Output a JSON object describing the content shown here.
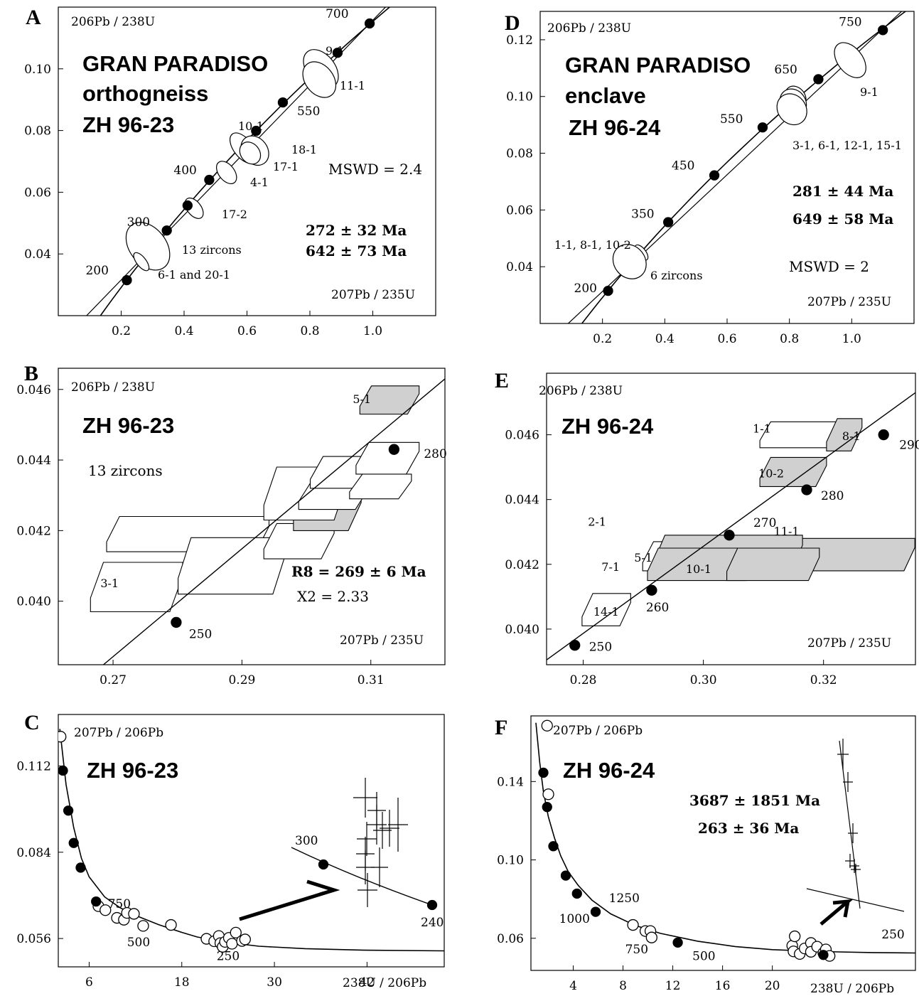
{
  "chart_data": [
    {
      "id": "A",
      "type": "concordia",
      "title": [
        "GRAN PARADISO",
        "orthogneiss",
        "ZH 96-23"
      ],
      "xlabel": "207Pb / 235U",
      "ylabel": "206Pb / 238U",
      "xlim": [
        0.0,
        1.2
      ],
      "ylim": [
        0.02,
        0.12
      ],
      "xticks": [
        0.2,
        0.4,
        0.6,
        0.8,
        1.0
      ],
      "xtick_labels": [
        "0.2",
        "0.4",
        "0.6",
        "0.8",
        "1.0"
      ],
      "yticks": [
        0.04,
        0.06,
        0.08,
        0.1
      ],
      "ytick_labels": [
        "0.04",
        "0.06",
        "0.08",
        "0.10"
      ],
      "concordia_points": [
        {
          "age": "200",
          "x": 0.218,
          "y": 0.0315
        },
        {
          "age": "300",
          "x": 0.345,
          "y": 0.0476
        },
        {
          "age": "400",
          "x": 0.48,
          "y": 0.064
        },
        {
          "age": "550",
          "x": 0.714,
          "y": 0.0891
        },
        {
          "age": "700",
          "x": 0.99,
          "y": 0.1147
        }
      ],
      "unlabeled_points": [
        {
          "x": 0.411,
          "y": 0.0557
        },
        {
          "x": 0.629,
          "y": 0.0799
        },
        {
          "x": 0.888,
          "y": 0.1052
        }
      ],
      "ellipses": [
        {
          "label": "9-1",
          "x": 0.835,
          "y": 0.1,
          "rx": 0.045,
          "ry": 0.0022
        },
        {
          "label": "11-1",
          "x": 0.83,
          "y": 0.0965,
          "rx": 0.045,
          "ry": 0.002
        },
        {
          "label": "10-1",
          "x": 0.588,
          "y": 0.0743,
          "rx": 0.03,
          "ry": 0.0018
        },
        {
          "label": "18-1",
          "x": 0.625,
          "y": 0.0735,
          "rx": 0.04,
          "ry": 0.0016
        },
        {
          "label": "17-1",
          "x": 0.61,
          "y": 0.0727,
          "rx": 0.03,
          "ry": 0.0012
        },
        {
          "label": "4-1",
          "x": 0.535,
          "y": 0.0664,
          "rx": 0.025,
          "ry": 0.0013
        },
        {
          "label": "17-2",
          "x": 0.432,
          "y": 0.0548,
          "rx": 0.022,
          "ry": 0.0012
        },
        {
          "label": "13 zircons",
          "x": 0.285,
          "y": 0.0425,
          "rx": 0.058,
          "ry": 0.0027
        },
        {
          "label": "6-1 and 20-1",
          "x": 0.264,
          "y": 0.0375,
          "rx": 0.015,
          "ry": 0.0011
        }
      ],
      "discordia": [
        [
          0.09,
          0.02
        ],
        [
          1.05,
          0.121
        ]
      ],
      "ellipse_labels": [
        "9-1",
        "11-1",
        "10-1",
        "18-1",
        "17-1",
        "4-1",
        "17-2",
        "13 zircons",
        "6-1 and 20-1"
      ],
      "results": [
        "272 ± 32 Ma",
        "642 ± 73 Ma"
      ],
      "mswd": "MSWD = 2.4"
    },
    {
      "id": "B",
      "type": "concordia",
      "title": "ZH 96-23",
      "subtitle": "13 zircons",
      "xlabel": "207Pb / 235U",
      "ylabel": "206Pb / 238U",
      "xlim": [
        0.2615,
        0.3215
      ],
      "ylim": [
        0.0382,
        0.0466
      ],
      "xticks": [
        0.27,
        0.29,
        0.31
      ],
      "xtick_labels": [
        "0.27",
        "0.29",
        "0.31"
      ],
      "yticks": [
        0.04,
        0.042,
        0.044,
        0.046
      ],
      "ytick_labels": [
        "0.040",
        "0.042",
        "0.044",
        "0.046"
      ],
      "concordia_points": [
        {
          "age": "250",
          "x": 0.2798,
          "y": 0.0394
        },
        {
          "age": "280",
          "x": 0.3136,
          "y": 0.0443
        }
      ],
      "boxes": [
        {
          "label": "5-1",
          "fill": "#d0d0d0",
          "x": [
            0.3083,
            0.3175
          ],
          "y": [
            0.0453,
            0.0461
          ],
          "dx": 0.0018
        },
        {
          "label": "3-1",
          "fill": "#ffffff",
          "x": [
            0.2665,
            0.2808
          ],
          "y": [
            0.0397,
            0.0411
          ],
          "dx": 0.002
        },
        {
          "label": "",
          "fill": "#ffffff",
          "x": [
            0.269,
            0.2942
          ],
          "y": [
            0.0414,
            0.0424
          ],
          "dx": 0.002
        },
        {
          "label": "",
          "fill": "#ffffff",
          "x": [
            0.2801,
            0.2968
          ],
          "y": [
            0.0402,
            0.0418
          ],
          "dx": 0.002
        },
        {
          "label": "",
          "fill": "#ffffff",
          "x": [
            0.2934,
            0.3043
          ],
          "y": [
            0.0412,
            0.0422
          ],
          "dx": 0.002
        },
        {
          "label": "",
          "fill": "#d0d0d0",
          "x": [
            0.298,
            0.3085
          ],
          "y": [
            0.042,
            0.0431
          ],
          "dx": 0.002
        },
        {
          "label": "",
          "fill": "#ffffff",
          "x": [
            0.2934,
            0.3063
          ],
          "y": [
            0.0423,
            0.0438
          ],
          "dx": 0.002
        },
        {
          "label": "",
          "fill": "#ffffff",
          "x": [
            0.2988,
            0.3096
          ],
          "y": [
            0.0426,
            0.0434
          ],
          "dx": 0.002
        },
        {
          "label": "",
          "fill": "#ffffff",
          "x": [
            0.3006,
            0.3122
          ],
          "y": [
            0.0432,
            0.0441
          ],
          "dx": 0.002
        },
        {
          "label": "",
          "fill": "#ffffff",
          "x": [
            0.3067,
            0.3163
          ],
          "y": [
            0.0429,
            0.0436
          ],
          "dx": 0.002
        },
        {
          "label": "",
          "fill": "#ffffff",
          "x": [
            0.3077,
            0.3175
          ],
          "y": [
            0.0436,
            0.0445
          ],
          "dx": 0.002
        }
      ],
      "line": [
        [
          0.2685,
          0.0382
        ],
        [
          0.3215,
          0.0463
        ]
      ],
      "results": "R8 = 269 ± 6 Ma",
      "chi2": "X2 = 2.33"
    },
    {
      "id": "C",
      "type": "tera-wasserburg",
      "title": "ZH 96-23",
      "xlabel": "238U / 206Pb",
      "ylabel": "207Pb / 206Pb",
      "xlim": [
        2.0,
        52.0
      ],
      "ylim": [
        0.0468,
        0.1287
      ],
      "xticks": [
        6,
        18,
        30,
        42
      ],
      "xtick_labels": [
        "6",
        "18",
        "30",
        "42"
      ],
      "yticks": [
        0.056,
        0.084,
        0.112
      ],
      "ytick_labels": [
        "0.056",
        "0.084",
        "0.112"
      ],
      "concordia_curve": [
        [
          2.2,
          0.124
        ],
        [
          3.0,
          0.106
        ],
        [
          4.0,
          0.092
        ],
        [
          5.0,
          0.082
        ],
        [
          6.0,
          0.076
        ],
        [
          8.0,
          0.0695
        ],
        [
          10.0,
          0.066
        ],
        [
          12.0,
          0.0635
        ],
        [
          15.0,
          0.0605
        ],
        [
          18.0,
          0.058
        ],
        [
          20.0,
          0.0565
        ],
        [
          24.0,
          0.0547
        ],
        [
          28.0,
          0.0535
        ],
        [
          34.0,
          0.0527
        ],
        [
          42.0,
          0.0522
        ],
        [
          52.0,
          0.052
        ]
      ],
      "concordia_points_filled": [
        [
          2.6,
          0.1105
        ],
        [
          3.3,
          0.0975
        ],
        [
          4.0,
          0.087
        ],
        [
          4.9,
          0.079
        ],
        [
          6.9,
          0.068
        ]
      ],
      "open_circles": [
        [
          2.3,
          0.1215
        ],
        [
          7.2,
          0.0665
        ],
        [
          8.1,
          0.0652
        ],
        [
          9.6,
          0.0627
        ],
        [
          10.5,
          0.0621
        ],
        [
          10.9,
          0.0643
        ],
        [
          11.8,
          0.064
        ],
        [
          13.0,
          0.0601
        ],
        [
          16.6,
          0.0604
        ],
        [
          21.2,
          0.0559
        ],
        [
          22.2,
          0.0551
        ],
        [
          22.8,
          0.0568
        ],
        [
          23.0,
          0.0545
        ],
        [
          23.3,
          0.0533
        ],
        [
          23.6,
          0.0549
        ],
        [
          24.1,
          0.0562
        ],
        [
          24.5,
          0.0543
        ],
        [
          25.0,
          0.0579
        ],
        [
          25.8,
          0.0552
        ],
        [
          26.2,
          0.0557
        ]
      ],
      "axis_labels": [
        "750",
        "500",
        "250"
      ],
      "inset": {
        "curve_points": [
          {
            "age": "300",
            "label_dx": -60,
            "label_dy": -22
          },
          {
            "age": "240",
            "label_dx": -6,
            "label_dy": 30
          }
        ],
        "crosses_count": 11
      },
      "curve_labels": {
        "750": [
          9.9,
          0.066
        ],
        "500": [
          12.4,
          0.0535
        ],
        "250": [
          24.0,
          0.049
        ]
      }
    },
    {
      "id": "D",
      "type": "concordia",
      "title": [
        "GRAN PARADISO",
        "enclave",
        "ZH 96-24"
      ],
      "xlabel": "207Pb / 235U",
      "ylabel": "206Pb / 238U",
      "xlim": [
        0.0,
        1.2
      ],
      "ylim": [
        0.02,
        0.13
      ],
      "xticks": [
        0.2,
        0.4,
        0.6,
        0.8,
        1.0
      ],
      "xtick_labels": [
        "0.2",
        "0.4",
        "0.6",
        "0.8",
        "1.0"
      ],
      "yticks": [
        0.04,
        0.06,
        0.08,
        0.1,
        0.12
      ],
      "ytick_labels": [
        "0.04",
        "0.06",
        "0.08",
        "0.10",
        "0.12"
      ],
      "concordia_points": [
        {
          "age": "200",
          "x": 0.218,
          "y": 0.0315
        },
        {
          "age": "350",
          "x": 0.411,
          "y": 0.0557
        },
        {
          "age": "450",
          "x": 0.559,
          "y": 0.0722
        },
        {
          "age": "550",
          "x": 0.714,
          "y": 0.0891
        },
        {
          "age": "650",
          "x": 0.893,
          "y": 0.1061
        },
        {
          "age": "750",
          "x": 1.1,
          "y": 0.1234
        }
      ],
      "ellipses": [
        {
          "label": "9-1",
          "x": 0.995,
          "y": 0.1128,
          "rx": 0.04,
          "ry": 0.0022
        },
        {
          "label": "",
          "x": 0.82,
          "y": 0.0998,
          "rx": 0.03,
          "ry": 0.0013
        },
        {
          "label": "",
          "x": 0.812,
          "y": 0.0978,
          "rx": 0.04,
          "ry": 0.0016
        },
        {
          "label": "3-1, 6-1, 12-1, 15-1",
          "x": 0.808,
          "y": 0.0955,
          "rx": 0.045,
          "ry": 0.0018
        },
        {
          "label": "",
          "x": 0.325,
          "y": 0.045,
          "rx": 0.014,
          "ry": 0.001
        },
        {
          "label": "6 zircons",
          "x": 0.287,
          "y": 0.0418,
          "rx": 0.05,
          "ry": 0.002
        }
      ],
      "discordia": [
        [
          0.09,
          0.02
        ],
        [
          1.17,
          0.131
        ]
      ],
      "ellipse_labels": [
        "9-1",
        "3-1, 6-1, 12-1, 15-1",
        "1-1, 8-1, 10-2",
        "6 zircons"
      ],
      "results": [
        "281 ± 44 Ma",
        "649 ± 58 Ma"
      ],
      "mswd": "MSWD = 2"
    },
    {
      "id": "E",
      "type": "concordia",
      "title": "ZH 96-24",
      "xlabel": "207Pb / 235U",
      "ylabel": "206Pb / 238U",
      "xlim": [
        0.2739,
        0.3353
      ],
      "ylim": [
        0.0389,
        0.0479
      ],
      "xticks": [
        0.28,
        0.3,
        0.32
      ],
      "xtick_labels": [
        "0.28",
        "0.30",
        "0.32"
      ],
      "yticks": [
        0.04,
        0.042,
        0.044,
        0.046
      ],
      "ytick_labels": [
        "0.040",
        "0.042",
        "0.044",
        "0.046"
      ],
      "concordia_points": [
        {
          "age": "250",
          "x": 0.2786,
          "y": 0.0395
        },
        {
          "age": "260",
          "x": 0.2914,
          "y": 0.0412
        },
        {
          "age": "270",
          "x": 0.3043,
          "y": 0.0429
        },
        {
          "age": "280",
          "x": 0.3172,
          "y": 0.0443
        },
        {
          "age": "290",
          "x": 0.33,
          "y": 0.046
        }
      ],
      "boxes": [
        {
          "label": "1-1",
          "fill": "#ffffff",
          "x": [
            0.3094,
            0.3243
          ],
          "y": [
            0.0456,
            0.0464
          ],
          "dx": 0.0018
        },
        {
          "label": "8-1",
          "fill": "#d0d0d0",
          "x": [
            0.3205,
            0.3264
          ],
          "y": [
            0.0455,
            0.0465
          ],
          "dx": 0.0018
        },
        {
          "label": "10-2",
          "fill": "#d0d0d0",
          "x": [
            0.3094,
            0.3205
          ],
          "y": [
            0.0444,
            0.0453
          ],
          "dx": 0.0018
        },
        {
          "label": "14-1",
          "fill": "#ffffff",
          "x": [
            0.2798,
            0.2879
          ],
          "y": [
            0.0401,
            0.0411
          ],
          "dx": 0.0018
        },
        {
          "label": "5-1",
          "fill": "#ffffff",
          "x": [
            0.2899,
            0.2955
          ],
          "y": [
            0.0418,
            0.0427
          ],
          "dx": 0.0018
        },
        {
          "label": "2-1",
          "fill": "#d0d0d0",
          "x": [
            0.2938,
            0.3352
          ],
          "y": [
            0.0418,
            0.0428
          ],
          "dx": 0.0018
        },
        {
          "label": "7-1",
          "fill": "#d0d0d0",
          "x": [
            0.2918,
            0.3165
          ],
          "y": [
            0.0418,
            0.0429
          ],
          "dx": 0.0018
        },
        {
          "label": "10-1",
          "fill": "#d0d0d0",
          "x": [
            0.2907,
            0.3089
          ],
          "y": [
            0.0415,
            0.0425
          ],
          "dx": 0.0018
        },
        {
          "label": "11-1",
          "fill": "#d0d0d0",
          "x": [
            0.3039,
            0.3193
          ],
          "y": [
            0.0415,
            0.0425
          ],
          "dx": 0.0018
        }
      ],
      "line": [
        [
          0.2728,
          0.0389
        ],
        [
          0.3353,
          0.0473
        ]
      ]
    },
    {
      "id": "F",
      "type": "tera-wasserburg",
      "title": "ZH 96-24",
      "xlabel": "238U / 206Pb",
      "ylabel": "207Pb / 206Pb",
      "xlim": [
        0.6,
        31.5
      ],
      "ylim": [
        0.0436,
        0.1735
      ],
      "xticks": [
        4,
        8,
        12,
        16,
        20
      ],
      "xtick_labels": [
        "4",
        "8",
        "12",
        "16",
        "20"
      ],
      "yticks": [
        0.06,
        0.1,
        0.14
      ],
      "ytick_labels": [
        "0.06",
        "0.10",
        "0.14"
      ],
      "concordia_curve": [
        [
          1.0,
          0.17
        ],
        [
          1.3,
          0.15
        ],
        [
          1.6,
          0.135
        ],
        [
          2.0,
          0.122
        ],
        [
          2.5,
          0.111
        ],
        [
          3.0,
          0.102
        ],
        [
          3.6,
          0.094
        ],
        [
          4.4,
          0.087
        ],
        [
          5.5,
          0.0795
        ],
        [
          7.0,
          0.0725
        ],
        [
          9.0,
          0.0665
        ],
        [
          11.0,
          0.0625
        ],
        [
          14.0,
          0.0585
        ],
        [
          17.0,
          0.0558
        ],
        [
          20.0,
          0.0542
        ],
        [
          24.0,
          0.0532
        ],
        [
          28.0,
          0.0527
        ],
        [
          31.5,
          0.0525
        ]
      ],
      "concordia_points_filled": [
        [
          1.6,
          0.1445
        ],
        [
          1.9,
          0.127
        ],
        [
          2.4,
          0.107
        ],
        [
          3.4,
          0.092
        ],
        [
          4.3,
          0.0828
        ],
        [
          5.8,
          0.0735
        ],
        [
          12.4,
          0.0578
        ],
        [
          24.1,
          0.0515
        ]
      ],
      "open_circles": [
        [
          1.9,
          0.1685
        ],
        [
          2.0,
          0.1335
        ],
        [
          8.8,
          0.0668
        ],
        [
          9.8,
          0.0637
        ],
        [
          10.2,
          0.0637
        ],
        [
          10.3,
          0.0604
        ],
        [
          21.6,
          0.0562
        ],
        [
          21.7,
          0.0533
        ],
        [
          21.8,
          0.061
        ],
        [
          22.2,
          0.052
        ],
        [
          22.6,
          0.0548
        ],
        [
          23.1,
          0.0576
        ],
        [
          23.1,
          0.0531
        ],
        [
          23.6,
          0.0557
        ],
        [
          24.1,
          0.0525
        ],
        [
          24.3,
          0.0543
        ],
        [
          24.6,
          0.051
        ]
      ],
      "axis_labels": [
        "1250",
        "1000",
        "750",
        "500",
        "250"
      ],
      "results": [
        "3687 ± 1851 Ma",
        "263 ± 36 Ma"
      ],
      "inset": {
        "crosses_count": 6
      },
      "curve_labels": {
        "1250": [
          8.1,
          0.0785
        ],
        "1000": [
          4.1,
          0.068
        ],
        "750": [
          9.1,
          0.0523
        ],
        "500": [
          14.5,
          0.0489
        ],
        "250": [
          29.7,
          0.06
        ]
      }
    }
  ]
}
